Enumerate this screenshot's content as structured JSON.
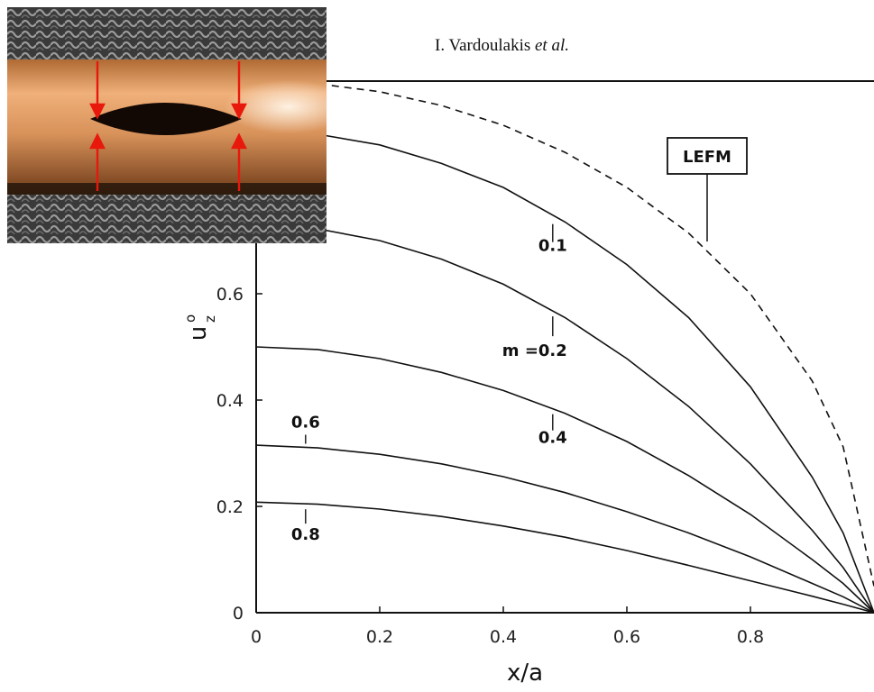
{
  "header": {
    "author": "I. Vardoulakis",
    "et_al": "et al."
  },
  "chart_data": {
    "type": "line",
    "xlabel": "x/a",
    "ylabel": "u",
    "ylabel_sup": "o",
    "ylabel_sub": "z",
    "xlim": [
      0,
      1
    ],
    "ylim": [
      0,
      1
    ],
    "xticks": [
      "0",
      "0.2",
      "0.4",
      "0.6",
      "0.8"
    ],
    "yticks": [
      "0",
      "0.2",
      "0.4",
      "0.6"
    ],
    "series": [
      {
        "name": "LEFM",
        "dashed": true,
        "x": [
          0,
          0.1,
          0.2,
          0.3,
          0.4,
          0.5,
          0.6,
          0.7,
          0.8,
          0.9,
          0.95,
          1.0
        ],
        "y": [
          1.0,
          0.995,
          0.98,
          0.954,
          0.917,
          0.866,
          0.8,
          0.714,
          0.6,
          0.436,
          0.312,
          0.05
        ]
      },
      {
        "name": "0.1",
        "x": [
          0,
          0.1,
          0.2,
          0.3,
          0.4,
          0.5,
          0.6,
          0.7,
          0.8,
          0.9,
          0.95,
          1.0
        ],
        "y": [
          0.905,
          0.9,
          0.88,
          0.845,
          0.8,
          0.735,
          0.655,
          0.555,
          0.425,
          0.255,
          0.15,
          0.0
        ]
      },
      {
        "name": "m = 0.2",
        "x": [
          0,
          0.1,
          0.2,
          0.3,
          0.4,
          0.5,
          0.6,
          0.7,
          0.8,
          0.9,
          0.95,
          1.0
        ],
        "y": [
          0.73,
          0.722,
          0.7,
          0.665,
          0.618,
          0.555,
          0.478,
          0.388,
          0.28,
          0.155,
          0.085,
          0.0
        ]
      },
      {
        "name": "0.4",
        "x": [
          0,
          0.1,
          0.2,
          0.3,
          0.4,
          0.5,
          0.6,
          0.7,
          0.8,
          0.9,
          0.95,
          1.0
        ],
        "y": [
          0.5,
          0.495,
          0.478,
          0.452,
          0.418,
          0.375,
          0.322,
          0.258,
          0.185,
          0.1,
          0.055,
          0.0
        ]
      },
      {
        "name": "0.6",
        "x": [
          0,
          0.1,
          0.2,
          0.3,
          0.4,
          0.5,
          0.6,
          0.7,
          0.8,
          0.9,
          0.95,
          1.0
        ],
        "y": [
          0.315,
          0.31,
          0.298,
          0.28,
          0.256,
          0.226,
          0.19,
          0.15,
          0.105,
          0.055,
          0.03,
          0.0
        ]
      },
      {
        "name": "0.8",
        "x": [
          0,
          0.1,
          0.2,
          0.3,
          0.4,
          0.5,
          0.6,
          0.7,
          0.8,
          0.9,
          0.95,
          1.0
        ],
        "y": [
          0.208,
          0.204,
          0.195,
          0.181,
          0.163,
          0.142,
          0.117,
          0.089,
          0.06,
          0.031,
          0.016,
          0.0
        ]
      }
    ],
    "annotations": [
      "LEFM",
      "0.1",
      "m =0.2",
      "0.4",
      "0.6",
      "0.8"
    ]
  },
  "colors": {
    "line": "#111111",
    "arrow": "#e8180c",
    "pipe": "#d9955a",
    "mesh": "#4a4a4a"
  },
  "photo": {
    "description_icon": "pipe-with-crack-photo"
  }
}
